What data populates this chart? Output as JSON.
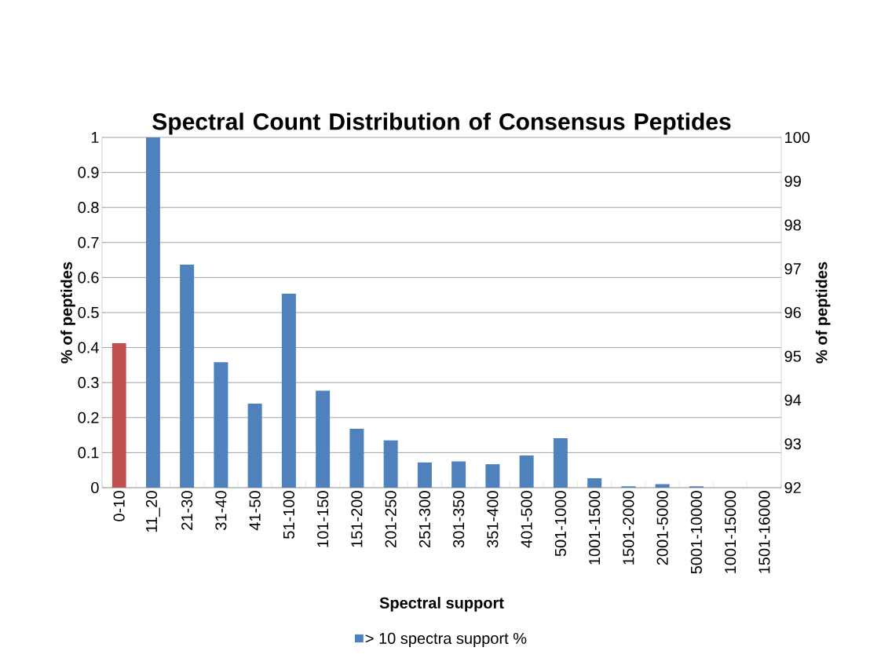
{
  "chart_data": {
    "type": "bar",
    "title": "Spectral Count Distribution of Consensus Peptides",
    "xlabel": "Spectral support",
    "ylabel": "% of peptides",
    "y2label": "% of peptides",
    "categories": [
      "0-10",
      "11_20",
      "21-30",
      "31-40",
      "41-50",
      "51-100",
      "101-150",
      "151-200",
      "201-250",
      "251-300",
      "301-350",
      "351-400",
      "401-500",
      "501-1000",
      "1001-1500",
      "1501-2000",
      "2001-5000",
      "5001-10000",
      "1001-15000",
      "1501-16000"
    ],
    "series": [
      {
        "name": "> 10 spectra support %",
        "color": "#4f81bd",
        "values": [
          null,
          1.0,
          0.637,
          0.358,
          0.24,
          0.554,
          0.277,
          0.168,
          0.135,
          0.072,
          0.075,
          0.067,
          0.092,
          0.141,
          0.027,
          0.004,
          0.01,
          0.004,
          0,
          0
        ]
      },
      {
        "color": "#c0504d",
        "axis": "y2",
        "values": [
          95.3,
          null,
          null,
          null,
          null,
          null,
          null,
          null,
          null,
          null,
          null,
          null,
          null,
          null,
          null,
          null,
          null,
          null,
          null,
          null
        ]
      }
    ],
    "ylim": [
      0,
      1
    ],
    "yticks": [
      0,
      0.1,
      0.2,
      0.3,
      0.4,
      0.5,
      0.6,
      0.7,
      0.8,
      0.9,
      1
    ],
    "y2lim": [
      92,
      100
    ],
    "y2ticks": [
      92,
      93,
      94,
      95,
      96,
      97,
      98,
      99,
      100
    ],
    "grid": "y",
    "legend": "bottom"
  }
}
